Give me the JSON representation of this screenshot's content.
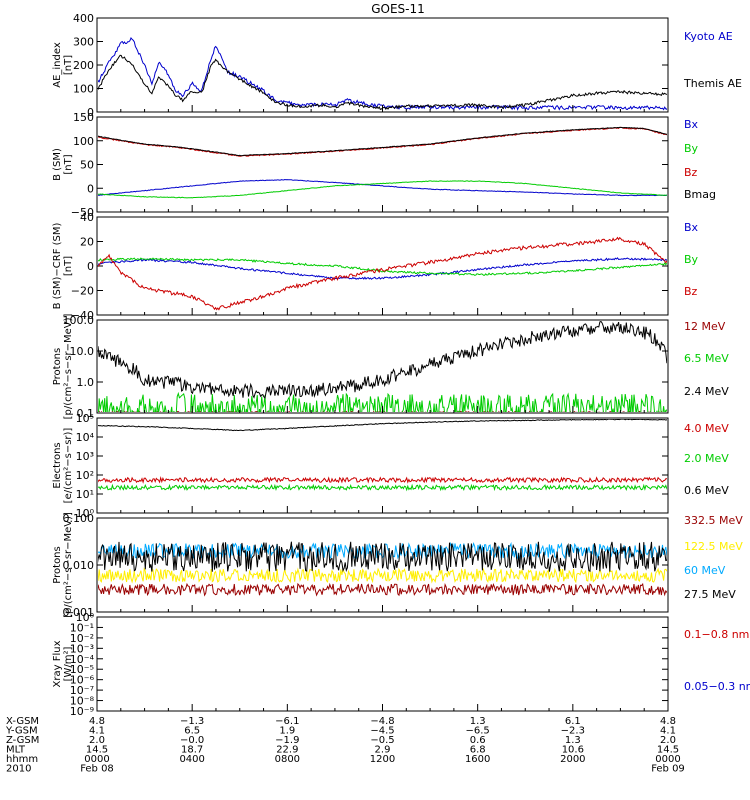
{
  "title": "GOES-11",
  "colors": {
    "black": "#000000",
    "blue": "#0000cc",
    "red": "#cc0000",
    "green": "#00cc00",
    "darkred": "#990000",
    "cyan": "#00aaff",
    "yellow": "#ffee00"
  },
  "chart_data": [
    {
      "type": "line",
      "ylabel": "AE_index\n[nT]",
      "ylim": [
        0,
        400
      ],
      "yscale": "linear",
      "yticks": [
        "0",
        "100",
        "200",
        "300",
        "400"
      ],
      "series": [
        {
          "name": "Kyoto AE",
          "color": "#0000cc",
          "x": [
            0,
            0.5,
            1,
            1.5,
            2,
            2.3,
            2.6,
            3,
            3.3,
            3.6,
            4,
            4.4,
            4.8,
            5,
            5.5,
            6,
            6.5,
            7,
            7.5,
            8,
            8.5,
            9,
            9.5,
            10,
            10.5,
            11,
            11.5,
            12,
            12.5,
            13,
            14,
            15,
            16,
            17,
            18,
            19,
            20,
            21,
            22,
            23,
            24
          ],
          "y": [
            120,
            210,
            290,
            310,
            200,
            120,
            210,
            160,
            90,
            70,
            120,
            90,
            230,
            280,
            170,
            150,
            120,
            90,
            50,
            40,
            30,
            30,
            35,
            30,
            50,
            40,
            30,
            25,
            20,
            20,
            20,
            20,
            20,
            20,
            18,
            20,
            18,
            20,
            18,
            20,
            15
          ]
        },
        {
          "name": "Themis AE",
          "color": "#000000",
          "x": [
            0,
            0.5,
            1,
            1.5,
            2,
            2.3,
            2.6,
            3,
            3.3,
            3.6,
            4,
            4.4,
            4.8,
            5,
            5.5,
            6,
            6.5,
            7,
            7.5,
            8,
            8.5,
            9,
            9.5,
            10,
            10.5,
            11,
            11.5,
            12,
            12.5,
            13,
            14,
            15,
            16,
            17,
            18,
            19,
            20,
            21,
            22,
            23,
            24
          ],
          "y": [
            90,
            180,
            240,
            200,
            120,
            80,
            150,
            110,
            70,
            50,
            90,
            80,
            200,
            220,
            170,
            140,
            110,
            80,
            40,
            30,
            25,
            25,
            30,
            20,
            40,
            30,
            20,
            15,
            20,
            25,
            25,
            30,
            30,
            20,
            30,
            50,
            70,
            80,
            85,
            80,
            75
          ]
        }
      ]
    },
    {
      "type": "line",
      "ylabel": "B (SM)\n[nT]",
      "ylim": [
        -50,
        150
      ],
      "yscale": "linear",
      "yticks": [
        "−50",
        "0",
        "50",
        "100",
        "150"
      ],
      "series": [
        {
          "name": "Bx",
          "color": "#0000cc",
          "x": [
            0,
            2,
            4,
            6,
            8,
            10,
            12,
            14,
            16,
            18,
            20,
            22,
            24
          ],
          "y": [
            -15,
            -5,
            5,
            15,
            18,
            12,
            5,
            -2,
            -5,
            -8,
            -12,
            -15,
            -15
          ]
        },
        {
          "name": "By",
          "color": "#00cc00",
          "x": [
            0,
            2,
            4,
            6,
            8,
            10,
            12,
            14,
            16,
            18,
            20,
            22,
            24
          ],
          "y": [
            -12,
            -18,
            -20,
            -15,
            -5,
            5,
            10,
            15,
            15,
            10,
            0,
            -10,
            -15
          ]
        },
        {
          "name": "Bz",
          "color": "#cc0000",
          "x": [
            0,
            1,
            2,
            3,
            4,
            5,
            6,
            8,
            10,
            12,
            14,
            16,
            18,
            20,
            22,
            23,
            24
          ],
          "y": [
            108,
            100,
            92,
            88,
            82,
            75,
            68,
            72,
            78,
            85,
            92,
            105,
            115,
            122,
            127,
            125,
            112
          ]
        },
        {
          "name": "Bmag",
          "color": "#000000",
          "x": [
            0,
            1,
            2,
            3,
            4,
            5,
            6,
            8,
            10,
            12,
            14,
            16,
            18,
            20,
            22,
            23,
            24
          ],
          "y": [
            110,
            101,
            93,
            89,
            83,
            76,
            69,
            73,
            79,
            86,
            93,
            106,
            116,
            123,
            128,
            126,
            113
          ]
        }
      ]
    },
    {
      "type": "line",
      "ylabel": "B (SM)−CRF (SM)\n[nT]",
      "ylim": [
        -40,
        40
      ],
      "yscale": "linear",
      "yticks": [
        "−40",
        "−20",
        "0",
        "20",
        "40"
      ],
      "series": [
        {
          "name": "Bx",
          "color": "#0000cc",
          "x": [
            0,
            2,
            4,
            6,
            8,
            10,
            12,
            14,
            16,
            18,
            20,
            22,
            24
          ],
          "y": [
            2,
            5,
            3,
            -2,
            -6,
            -10,
            -10,
            -7,
            -3,
            1,
            4,
            6,
            5
          ]
        },
        {
          "name": "By",
          "color": "#00cc00",
          "x": [
            0,
            2,
            4,
            6,
            8,
            10,
            12,
            14,
            16,
            18,
            20,
            22,
            24
          ],
          "y": [
            5,
            6,
            5,
            5,
            2,
            0,
            -4,
            -6,
            -7,
            -6,
            -4,
            -1,
            2
          ]
        },
        {
          "name": "Bz",
          "color": "#cc0000",
          "x": [
            0,
            0.5,
            1,
            1.5,
            2,
            4,
            5,
            6,
            7,
            8,
            10,
            12,
            14,
            16,
            18,
            20,
            22,
            23,
            23.5,
            24
          ],
          "y": [
            0,
            8,
            -5,
            -12,
            -18,
            -25,
            -35,
            -30,
            -25,
            -18,
            -10,
            -3,
            3,
            10,
            15,
            18,
            22,
            18,
            10,
            2
          ]
        }
      ]
    },
    {
      "type": "line",
      "ylabel": "Protons\n[p/(cm²−s−sr−MeV)]",
      "ylim": [
        0.1,
        100
      ],
      "yscale": "log",
      "yticks": [
        "0.1",
        "1.0",
        "10.0",
        "100.0"
      ],
      "series": [
        {
          "name": "12 MeV",
          "color": "#990000",
          "x": [
            0,
            24
          ],
          "y": [
            0.1,
            0.1
          ]
        },
        {
          "name": "6.5 MeV",
          "color": "#00cc00",
          "x": [
            0,
            24
          ],
          "y": [
            0.15,
            0.15
          ]
        },
        {
          "name": "2.4 MeV",
          "color": "#000000",
          "x": [
            0,
            1,
            2,
            4,
            6,
            8,
            10,
            11,
            12,
            13,
            14,
            15,
            16,
            17,
            18,
            19,
            20,
            21,
            22,
            23,
            24
          ],
          "y": [
            9,
            4,
            1.2,
            0.7,
            0.5,
            0.5,
            0.6,
            0.8,
            1.2,
            2,
            3.5,
            6,
            10,
            16,
            25,
            35,
            45,
            55,
            60,
            40,
            5
          ]
        }
      ]
    },
    {
      "type": "line",
      "ylabel": "Electrons\n[e/(cm²−s−sr)]",
      "ylim": [
        1,
        100000
      ],
      "yscale": "log",
      "yticks": [
        "10⁰",
        "10¹",
        "10²",
        "10³",
        "10⁴",
        "10⁵"
      ],
      "series": [
        {
          "name": "4.0 MeV",
          "color": "#cc0000",
          "x": [
            0,
            24
          ],
          "y": [
            55,
            55
          ]
        },
        {
          "name": "2.0 MeV",
          "color": "#00cc00",
          "x": [
            0,
            24
          ],
          "y": [
            22,
            22
          ]
        },
        {
          "name": "0.6 MeV",
          "color": "#000000",
          "x": [
            0,
            2,
            4,
            6,
            8,
            10,
            12,
            14,
            16,
            18,
            20,
            22,
            24
          ],
          "y": [
            40000,
            35000,
            28000,
            22000,
            28000,
            38000,
            50000,
            60000,
            70000,
            75000,
            80000,
            85000,
            80000
          ]
        }
      ]
    },
    {
      "type": "line",
      "ylabel": "Protons\n[p/(cm²−s−sr−MeV)]",
      "ylim": [
        0.001,
        0.1
      ],
      "yscale": "log",
      "yticks": [
        "0.001",
        "0.010",
        "0.100"
      ],
      "series": [
        {
          "name": "332.5 MeV",
          "color": "#990000",
          "x": [
            0,
            24
          ],
          "y": [
            0.003,
            0.003
          ]
        },
        {
          "name": "122.5 MeV",
          "color": "#ffee00",
          "x": [
            0,
            24
          ],
          "y": [
            0.006,
            0.006
          ]
        },
        {
          "name": "60 MeV",
          "color": "#00aaff",
          "x": [
            0,
            24
          ],
          "y": [
            0.02,
            0.02
          ]
        },
        {
          "name": "27.5 MeV",
          "color": "#000000",
          "x": [
            0,
            24
          ],
          "y": [
            0.015,
            0.015
          ]
        }
      ]
    },
    {
      "type": "line",
      "ylabel": "Xray Flux\n[W/m²]",
      "ylim": [
        1e-09,
        1
      ],
      "yscale": "log",
      "yticks": [
        "10⁻⁹",
        "10⁻⁸",
        "10⁻⁷",
        "10⁻⁶",
        "10⁻⁵",
        "10⁻⁴",
        "10⁻³",
        "10⁻²",
        "10⁻¹",
        "10⁰"
      ],
      "series": [
        {
          "name": "0.1−0.8 nm",
          "color": "#cc0000",
          "x": [],
          "y": []
        },
        {
          "name": "0.05−0.3 nm",
          "color": "#0000cc",
          "x": [],
          "y": []
        }
      ]
    }
  ],
  "x_axis": {
    "xlim": [
      0,
      24
    ],
    "ticks_hours": [
      0,
      4,
      8,
      12,
      16,
      20,
      24
    ],
    "rows": [
      {
        "label": "X-GSM",
        "values": [
          "4.8",
          "−1.3",
          "−6.1",
          "−4.8",
          "1.3",
          "6.1",
          "4.8"
        ]
      },
      {
        "label": "Y-GSM",
        "values": [
          "4.1",
          "6.5",
          "1.9",
          "−4.5",
          "−6.5",
          "−2.3",
          "4.1"
        ]
      },
      {
        "label": "Z-GSM",
        "values": [
          "2.0",
          "−0.0",
          "−1.9",
          "−0.5",
          "0.6",
          "1.3",
          "2.0"
        ]
      },
      {
        "label": "MLT",
        "values": [
          "14.5",
          "18.7",
          "22.9",
          "2.9",
          "6.8",
          "10.6",
          "14.5"
        ]
      },
      {
        "label": "hhmm",
        "values": [
          "0000",
          "0400",
          "0800",
          "1200",
          "1600",
          "2000",
          "0000"
        ]
      },
      {
        "label": "2010",
        "values": [
          "Feb 08",
          "",
          "",
          "",
          "",
          "",
          "Feb 09"
        ]
      }
    ]
  }
}
